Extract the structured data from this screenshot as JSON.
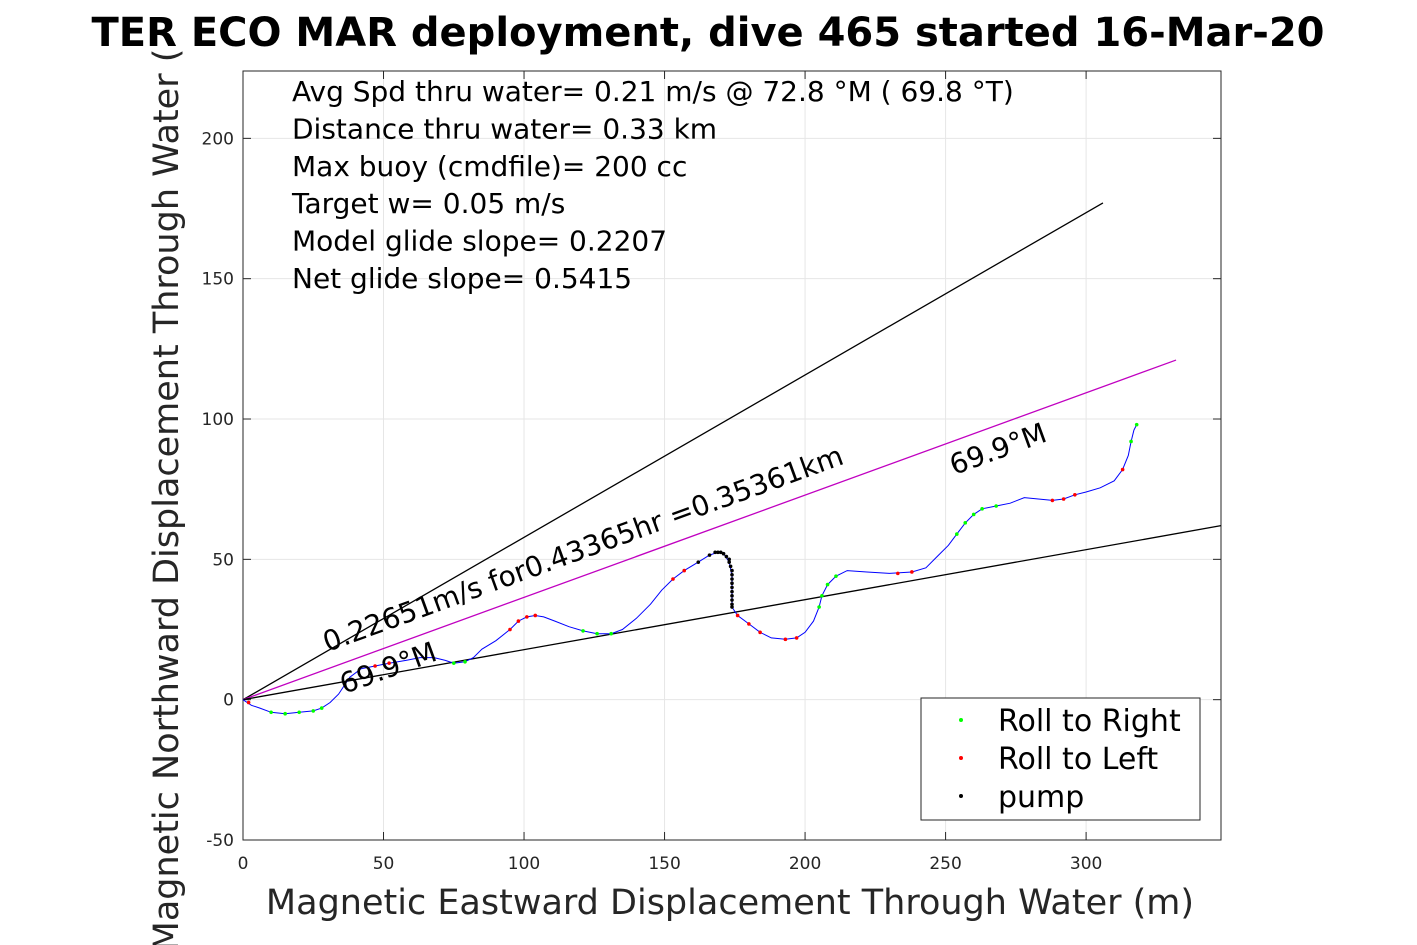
{
  "chart_data": {
    "type": "line",
    "title": "TER ECO MAR deployment, dive 465 started 16-Mar-20",
    "xlabel": "Magnetic Eastward Displacement Through Water (m)",
    "ylabel": "Magnetic Northward Displacement Through Water (",
    "xlim": [
      0,
      348
    ],
    "ylim": [
      -50,
      224
    ],
    "xticks": [
      0,
      50,
      100,
      150,
      200,
      250,
      300
    ],
    "yticks": [
      -50,
      0,
      50,
      100,
      150,
      200
    ],
    "grid": true,
    "legend_position": "bottom-right",
    "stats_lines": [
      "Avg Spd thru water=  0.21 m/s @  72.8 °M ( 69.8 °T)",
      "Distance thru water=  0.33 km",
      "Max buoy (cmdfile)= 200 cc",
      "Target w= 0.05 m/s",
      "Model glide slope= 0.2207",
      "Net glide slope= 0.5415"
    ],
    "annotations": [
      {
        "text": "0.22651m/s for0.43365hr =0.35361km",
        "x": 30,
        "y": 17,
        "angle_deg": 69.9
      },
      {
        "text": "69.9°M",
        "x": 36,
        "y": 2,
        "angle_deg": 69.9
      },
      {
        "text": "69.9°M",
        "x": 253,
        "y": 80,
        "angle_deg": 69.9
      }
    ],
    "reference_lines": [
      {
        "name": "upper",
        "color": "#000000",
        "points": [
          [
            0,
            0
          ],
          [
            306,
            177
          ]
        ]
      },
      {
        "name": "mean heading",
        "color": "#c000c0",
        "points": [
          [
            0,
            0
          ],
          [
            332,
            121
          ]
        ]
      },
      {
        "name": "lower",
        "color": "#000000",
        "points": [
          [
            0,
            0
          ],
          [
            348,
            62
          ]
        ]
      }
    ],
    "track": {
      "name": "track",
      "color": "#0000ff",
      "points": [
        [
          0,
          0
        ],
        [
          3,
          -2
        ],
        [
          6,
          -3
        ],
        [
          10,
          -4.5
        ],
        [
          15,
          -5
        ],
        [
          20,
          -4.5
        ],
        [
          25,
          -4
        ],
        [
          28,
          -3
        ],
        [
          31,
          -1
        ],
        [
          34,
          2
        ],
        [
          36,
          5
        ],
        [
          38,
          8
        ],
        [
          42,
          11
        ],
        [
          47,
          12
        ],
        [
          52,
          13
        ],
        [
          58,
          14
        ],
        [
          63,
          15
        ],
        [
          68,
          15
        ],
        [
          72,
          14
        ],
        [
          75,
          13
        ],
        [
          79,
          13.5
        ],
        [
          82,
          15
        ],
        [
          85,
          18
        ],
        [
          90,
          21
        ],
        [
          95,
          25
        ],
        [
          98,
          28
        ],
        [
          101,
          29.5
        ],
        [
          104,
          30
        ],
        [
          107,
          29.5
        ],
        [
          111,
          28
        ],
        [
          116,
          26
        ],
        [
          121,
          24.5
        ],
        [
          126,
          23.5
        ],
        [
          131,
          23.5
        ],
        [
          135,
          25
        ],
        [
          140,
          29
        ],
        [
          145,
          34
        ],
        [
          149,
          39
        ],
        [
          153,
          43
        ],
        [
          157,
          46
        ],
        [
          162,
          49
        ],
        [
          166,
          51.5
        ],
        [
          169,
          52.5
        ],
        [
          171,
          52
        ],
        [
          173,
          49
        ],
        [
          174,
          44
        ],
        [
          174,
          38
        ],
        [
          174,
          33
        ],
        [
          176,
          30
        ],
        [
          180,
          27
        ],
        [
          184,
          24
        ],
        [
          188,
          22
        ],
        [
          193,
          21.5
        ],
        [
          197,
          22
        ],
        [
          200,
          24
        ],
        [
          203,
          28
        ],
        [
          205,
          33
        ],
        [
          206,
          37
        ],
        [
          208,
          41
        ],
        [
          211,
          44
        ],
        [
          215,
          46
        ],
        [
          222,
          45.5
        ],
        [
          230,
          45
        ],
        [
          238,
          45.5
        ],
        [
          243,
          47
        ],
        [
          247,
          51
        ],
        [
          251,
          55
        ],
        [
          254,
          59
        ],
        [
          257,
          63
        ],
        [
          260,
          66
        ],
        [
          263,
          68
        ],
        [
          268,
          69
        ],
        [
          273,
          70
        ],
        [
          278,
          72
        ],
        [
          283,
          71.5
        ],
        [
          288,
          71
        ],
        [
          292,
          71.5
        ],
        [
          296,
          73
        ],
        [
          300,
          74
        ],
        [
          305,
          75.5
        ],
        [
          310,
          78
        ],
        [
          313,
          82
        ],
        [
          315,
          87
        ],
        [
          316,
          92
        ],
        [
          317,
          96
        ],
        [
          318,
          98
        ]
      ]
    },
    "series": [
      {
        "name": "Roll to Right",
        "color": "#00ff00",
        "marker": "dot",
        "points": [
          [
            10,
            -4.5
          ],
          [
            15,
            -5
          ],
          [
            20,
            -4.5
          ],
          [
            25,
            -4
          ],
          [
            28,
            -3
          ],
          [
            75,
            13
          ],
          [
            79,
            13.5
          ],
          [
            121,
            24.5
          ],
          [
            126,
            23.5
          ],
          [
            131,
            23.5
          ],
          [
            205,
            33
          ],
          [
            206,
            37
          ],
          [
            208,
            41
          ],
          [
            211,
            44
          ],
          [
            254,
            59
          ],
          [
            257,
            63
          ],
          [
            260,
            66
          ],
          [
            263,
            68
          ],
          [
            268,
            69
          ],
          [
            316,
            92
          ],
          [
            318,
            98
          ]
        ]
      },
      {
        "name": "Roll to Left",
        "color": "#ff0000",
        "marker": "dot",
        "points": [
          [
            2,
            -1
          ],
          [
            47,
            12
          ],
          [
            52,
            13
          ],
          [
            95,
            25
          ],
          [
            98,
            28
          ],
          [
            101,
            29.5
          ],
          [
            104,
            30
          ],
          [
            153,
            43
          ],
          [
            157,
            46
          ],
          [
            176,
            30
          ],
          [
            180,
            27
          ],
          [
            184,
            24
          ],
          [
            193,
            21.5
          ],
          [
            197,
            22
          ],
          [
            233,
            45
          ],
          [
            238,
            45.5
          ],
          [
            288,
            71
          ],
          [
            292,
            71.5
          ],
          [
            296,
            73
          ],
          [
            313,
            82
          ]
        ]
      },
      {
        "name": "pump",
        "color": "#000000",
        "marker": "dot",
        "points": [
          [
            162,
            49
          ],
          [
            166,
            51.5
          ],
          [
            168,
            52.5
          ],
          [
            169,
            52.5
          ],
          [
            170,
            52.5
          ],
          [
            171,
            52
          ],
          [
            172,
            51
          ],
          [
            173,
            50
          ],
          [
            173,
            49
          ],
          [
            173.5,
            47.5
          ],
          [
            174,
            46
          ],
          [
            174,
            44.5
          ],
          [
            174,
            43
          ],
          [
            174,
            41.5
          ],
          [
            174,
            40
          ],
          [
            174,
            38.5
          ],
          [
            174,
            37
          ],
          [
            174,
            35.5
          ],
          [
            174,
            34
          ],
          [
            174,
            33
          ]
        ]
      }
    ]
  }
}
